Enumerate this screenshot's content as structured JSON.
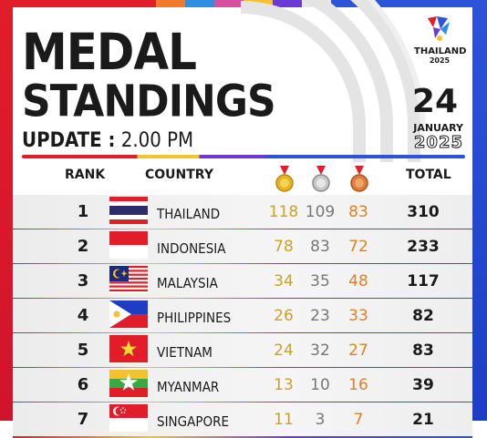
{
  "title_line1": "MEDAL",
  "title_line2": "STANDINGS",
  "update_label": "UPDATE :",
  "update_time": "2.00 PM",
  "logo_text": "THAILAND",
  "logo_year": "2025",
  "date_day": "24",
  "date_month": "JANUARY",
  "date_year": "2025",
  "headers": {
    "rank": "RANK",
    "country": "COUNTRY",
    "total": "TOTAL"
  },
  "medal_icons": [
    "gold-medal-icon",
    "silver-medal-icon",
    "bronze-medal-icon"
  ],
  "colors": {
    "gold": "#c9a227",
    "silver": "#777777",
    "bronze": "#d9822b",
    "red": "#e11d2a",
    "blue": "#2d53d8"
  },
  "rows": [
    {
      "rank": "1",
      "country": "THAILAND",
      "gold": "118",
      "silver": "109",
      "bronze": "83",
      "total": "310",
      "flag": "thailand-flag-icon"
    },
    {
      "rank": "2",
      "country": "INDONESIA",
      "gold": "78",
      "silver": "83",
      "bronze": "72",
      "total": "233",
      "flag": "indonesia-flag-icon"
    },
    {
      "rank": "3",
      "country": "MALAYSIA",
      "gold": "34",
      "silver": "35",
      "bronze": "48",
      "total": "117",
      "flag": "malaysia-flag-icon"
    },
    {
      "rank": "4",
      "country": "PHILIPPINES",
      "gold": "26",
      "silver": "23",
      "bronze": "33",
      "total": "82",
      "flag": "philippines-flag-icon"
    },
    {
      "rank": "5",
      "country": "VIETNAM",
      "gold": "24",
      "silver": "32",
      "bronze": "27",
      "total": "83",
      "flag": "vietnam-flag-icon"
    },
    {
      "rank": "6",
      "country": "MYANMAR",
      "gold": "13",
      "silver": "10",
      "bronze": "16",
      "total": "39",
      "flag": "myanmar-flag-icon"
    },
    {
      "rank": "7",
      "country": "SINGAPORE",
      "gold": "11",
      "silver": "3",
      "bronze": "7",
      "total": "21",
      "flag": "singapore-flag-icon"
    }
  ]
}
